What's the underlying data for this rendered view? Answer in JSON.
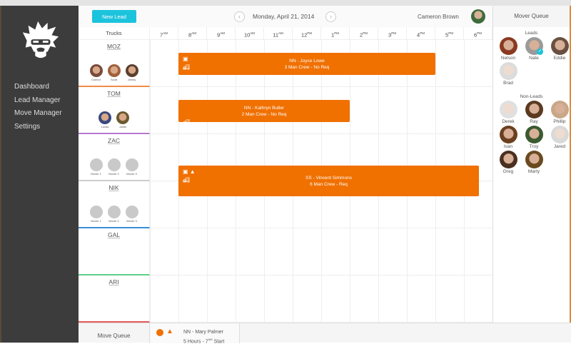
{
  "header": {
    "new_lead": "New Lead",
    "date": "Monday, April 21, 2014",
    "user": "Cameron Brown",
    "prev": "‹",
    "next": "›"
  },
  "sidebar": {
    "items": [
      "Dashboard",
      "Lead Manager",
      "Move Manager",
      "Settings"
    ]
  },
  "grid": {
    "trucks_label": "Trucks",
    "hours": [
      [
        "7",
        "AM"
      ],
      [
        "8",
        "AM"
      ],
      [
        "9",
        "AM"
      ],
      [
        "10",
        "AM"
      ],
      [
        "11",
        "AM"
      ],
      [
        "12",
        "PM"
      ],
      [
        "1",
        "PM"
      ],
      [
        "2",
        "PM"
      ],
      [
        "3",
        "PM"
      ],
      [
        "4",
        "PM"
      ],
      [
        "5",
        "PM"
      ],
      [
        "6",
        "PM"
      ]
    ]
  },
  "trucks": [
    {
      "name": "MOZ",
      "color": "#f08a4b",
      "movers": [
        "Connor",
        "Scott",
        "Jimmy"
      ]
    },
    {
      "name": "TOM",
      "color": "#b57ad0",
      "movers": [
        "Lucas",
        "Justin"
      ]
    },
    {
      "name": "ZAC",
      "color": "#cccccc",
      "movers": [
        "Mover 1",
        "Mover 2",
        "Mover 3"
      ]
    },
    {
      "name": "NIK",
      "color": "#3a8fd8",
      "movers": [
        "Mover 1",
        "Mover 2",
        "Mover 3"
      ]
    },
    {
      "name": "GAL",
      "color": "#5fd08a",
      "movers": []
    },
    {
      "name": "ARI",
      "color": "#e85a5a",
      "movers": []
    }
  ],
  "jobs": [
    {
      "title": "NN - Joyce Lowe",
      "detail": "3 Man Crew - No Req"
    },
    {
      "title": "NN - Kathryn Butler",
      "detail": "2 Man Crew - No Req"
    },
    {
      "title": "SS - Vincent Simmons",
      "detail": "6 Man Crew - Req"
    }
  ],
  "queue": {
    "label": "Move Queue",
    "item_title": "NN - Mary Palmer",
    "item_detail": "5 Hours - 7",
    "item_sup": "AM",
    "item_tail": " Start"
  },
  "mover_queue": {
    "title": "Mover Queue",
    "leads_label": "Leads",
    "non_leads_label": "Non-Leads",
    "leads": [
      "Nelson",
      "Nate",
      "Eddie",
      "Brad"
    ],
    "non_leads": [
      "Derek",
      "Ray",
      "Phillip",
      "Ivan",
      "Troy",
      "Jared",
      "Greg",
      "Marty"
    ]
  },
  "colors": {
    "accent": "#1cc3dc",
    "job": "#f07000",
    "sidebar": "#3c3c3c"
  }
}
